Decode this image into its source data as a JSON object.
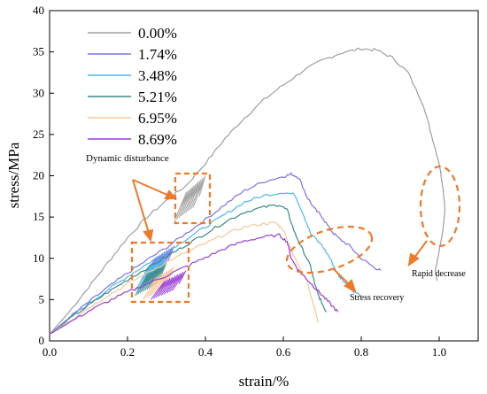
{
  "chart_data": {
    "type": "line",
    "xlabel": "strain/%",
    "ylabel": "stress/MPa",
    "xlim": [
      0,
      1.1
    ],
    "ylim": [
      0,
      40
    ],
    "x_ticks": [
      "0.0",
      "0.2",
      "0.4",
      "0.6",
      "0.8",
      "1.0"
    ],
    "x_tick_values": [
      0,
      0.2,
      0.4,
      0.6,
      0.8,
      1.0
    ],
    "y_ticks": [
      "0",
      "5",
      "10",
      "15",
      "20",
      "25",
      "30",
      "35",
      "40"
    ],
    "y_tick_values": [
      0,
      5,
      10,
      15,
      20,
      25,
      30,
      35,
      40
    ],
    "grid": false,
    "legend_position": "top-left",
    "series": [
      {
        "name": "0.00%",
        "color": "#9e9e9e",
        "points": [
          [
            0,
            0.8
          ],
          [
            0.05,
            3.5
          ],
          [
            0.1,
            6.5
          ],
          [
            0.15,
            9.5
          ],
          [
            0.2,
            12.5
          ],
          [
            0.25,
            15.0
          ],
          [
            0.3,
            17.0
          ],
          [
            0.35,
            18.8
          ],
          [
            0.4,
            21.5
          ],
          [
            0.45,
            24.5
          ],
          [
            0.5,
            27.0
          ],
          [
            0.55,
            29.2
          ],
          [
            0.6,
            31.0
          ],
          [
            0.65,
            32.7
          ],
          [
            0.7,
            34.0
          ],
          [
            0.75,
            34.9
          ],
          [
            0.8,
            35.4
          ],
          [
            0.84,
            35.2
          ],
          [
            0.88,
            34.3
          ],
          [
            0.92,
            32.5
          ],
          [
            0.96,
            28.5
          ],
          [
            0.98,
            25.0
          ],
          [
            1.0,
            21.5
          ],
          [
            1.01,
            18.5
          ],
          [
            1.015,
            16.0
          ],
          [
            1.01,
            13.5
          ],
          [
            1.0,
            11.0
          ],
          [
            0.99,
            8.5
          ],
          [
            0.995,
            7.3
          ]
        ],
        "disturbance": {
          "x": [
            0.32,
            0.4
          ],
          "y": [
            14.5,
            20.0
          ]
        }
      },
      {
        "name": "1.74%",
        "color": "#7b73e6",
        "points": [
          [
            0,
            0.8
          ],
          [
            0.05,
            2.8
          ],
          [
            0.1,
            4.7
          ],
          [
            0.15,
            6.5
          ],
          [
            0.2,
            8.2
          ],
          [
            0.25,
            9.8
          ],
          [
            0.3,
            11.3
          ],
          [
            0.35,
            13.0
          ],
          [
            0.4,
            14.7
          ],
          [
            0.45,
            16.5
          ],
          [
            0.5,
            18.2
          ],
          [
            0.55,
            19.3
          ],
          [
            0.6,
            19.9
          ],
          [
            0.62,
            20.2
          ],
          [
            0.64,
            19.8
          ],
          [
            0.66,
            17.5
          ],
          [
            0.68,
            16.0
          ],
          [
            0.7,
            15.0
          ],
          [
            0.72,
            13.5
          ],
          [
            0.74,
            12.5
          ],
          [
            0.77,
            11.5
          ],
          [
            0.8,
            10.0
          ],
          [
            0.83,
            9.0
          ],
          [
            0.85,
            8.5
          ]
        ],
        "disturbance": {
          "x": [
            0.24,
            0.32
          ],
          "y": [
            7.5,
            11.5
          ]
        }
      },
      {
        "name": "3.48%",
        "color": "#4db8ea",
        "points": [
          [
            0,
            0.8
          ],
          [
            0.05,
            2.7
          ],
          [
            0.1,
            4.5
          ],
          [
            0.15,
            6.2
          ],
          [
            0.2,
            7.8
          ],
          [
            0.25,
            9.3
          ],
          [
            0.3,
            10.8
          ],
          [
            0.35,
            12.3
          ],
          [
            0.4,
            13.8
          ],
          [
            0.45,
            15.3
          ],
          [
            0.5,
            16.8
          ],
          [
            0.55,
            17.6
          ],
          [
            0.6,
            18.0
          ],
          [
            0.63,
            17.7
          ],
          [
            0.65,
            15.5
          ],
          [
            0.67,
            13.0
          ],
          [
            0.7,
            11.5
          ],
          [
            0.72,
            10.0
          ],
          [
            0.74,
            8.0
          ],
          [
            0.75,
            7.5
          ],
          [
            0.77,
            6.5
          ],
          [
            0.78,
            6.0
          ],
          [
            0.8,
            5.5
          ]
        ],
        "disturbance": {
          "x": [
            0.22,
            0.3
          ],
          "y": [
            6.0,
            10.5
          ]
        }
      },
      {
        "name": "5.21%",
        "color": "#3a8a8a",
        "points": [
          [
            0,
            0.8
          ],
          [
            0.05,
            2.6
          ],
          [
            0.1,
            4.3
          ],
          [
            0.15,
            5.9
          ],
          [
            0.2,
            7.4
          ],
          [
            0.25,
            8.8
          ],
          [
            0.3,
            10.2
          ],
          [
            0.35,
            11.6
          ],
          [
            0.4,
            13.0
          ],
          [
            0.45,
            14.4
          ],
          [
            0.5,
            15.6
          ],
          [
            0.55,
            16.2
          ],
          [
            0.59,
            16.5
          ],
          [
            0.61,
            15.8
          ],
          [
            0.63,
            13.0
          ],
          [
            0.65,
            11.0
          ],
          [
            0.67,
            9.0
          ],
          [
            0.68,
            7.0
          ],
          [
            0.69,
            5.5
          ],
          [
            0.7,
            4.5
          ],
          [
            0.71,
            3.5
          ]
        ],
        "disturbance": {
          "x": [
            0.22,
            0.3
          ],
          "y": [
            5.5,
            9.5
          ]
        }
      },
      {
        "name": "6.95%",
        "color": "#f7c79a",
        "points": [
          [
            0,
            0.8
          ],
          [
            0.05,
            2.4
          ],
          [
            0.1,
            4.0
          ],
          [
            0.15,
            5.5
          ],
          [
            0.2,
            6.9
          ],
          [
            0.25,
            8.2
          ],
          [
            0.3,
            9.5
          ],
          [
            0.35,
            10.7
          ],
          [
            0.4,
            11.8
          ],
          [
            0.45,
            12.9
          ],
          [
            0.5,
            13.8
          ],
          [
            0.55,
            14.2
          ],
          [
            0.58,
            14.3
          ],
          [
            0.6,
            13.5
          ],
          [
            0.62,
            11.0
          ],
          [
            0.64,
            9.0
          ],
          [
            0.66,
            7.5
          ],
          [
            0.67,
            5.5
          ],
          [
            0.68,
            4.0
          ],
          [
            0.69,
            2.2
          ]
        ],
        "disturbance": {
          "x": [
            0.24,
            0.32
          ],
          "y": [
            5.0,
            9.0
          ]
        }
      },
      {
        "name": "8.69%",
        "color": "#9a3fd8",
        "points": [
          [
            0,
            0.8
          ],
          [
            0.05,
            2.2
          ],
          [
            0.1,
            3.6
          ],
          [
            0.15,
            4.8
          ],
          [
            0.2,
            5.9
          ],
          [
            0.25,
            6.9
          ],
          [
            0.3,
            7.9
          ],
          [
            0.35,
            9.0
          ],
          [
            0.4,
            10.1
          ],
          [
            0.45,
            11.2
          ],
          [
            0.5,
            12.1
          ],
          [
            0.55,
            12.6
          ],
          [
            0.59,
            12.8
          ],
          [
            0.61,
            12.0
          ],
          [
            0.62,
            10.0
          ],
          [
            0.64,
            8.5
          ],
          [
            0.66,
            7.5
          ],
          [
            0.68,
            6.5
          ],
          [
            0.7,
            5.5
          ],
          [
            0.72,
            4.5
          ],
          [
            0.74,
            3.5
          ]
        ],
        "disturbance": {
          "x": [
            0.26,
            0.35
          ],
          "y": [
            5.0,
            8.5
          ]
        }
      }
    ],
    "annotations": [
      {
        "text": "Dynamic disturbance"
      },
      {
        "text": "Rapid decrease"
      },
      {
        "text": "Stress recovery"
      }
    ]
  }
}
